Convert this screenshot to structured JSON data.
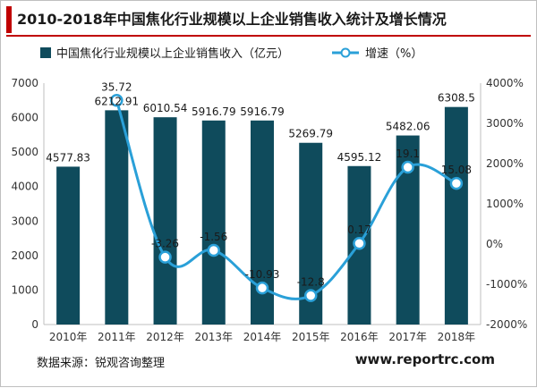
{
  "title": "2010-2018年中国焦化行业规模以上企业销售收入统计及增长情况",
  "source": "数据来源：锐观咨询整理",
  "website": "www.reportrc.com",
  "colors": {
    "bar": "#0f4b5c",
    "line": "#2aa0d8",
    "accent": "#c00000"
  },
  "chart_data": {
    "type": "bar+line",
    "categories": [
      "2010年",
      "2011年",
      "2012年",
      "2013年",
      "2014年",
      "2015年",
      "2016年",
      "2017年",
      "2018年"
    ],
    "series": [
      {
        "name": "中国焦化行业规模以上企业销售收入（亿元）",
        "type": "bar",
        "axis": "left",
        "values": [
          4577.83,
          6212.91,
          6010.54,
          5916.79,
          5916.79,
          5269.79,
          4595.12,
          5482.06,
          6308.5
        ],
        "labels": [
          "4577.83",
          "6212.91",
          "6010.54",
          "5916.79",
          "5916.79",
          "5269.79",
          "4595.12",
          "5482.06",
          "6308.5"
        ]
      },
      {
        "name": "增速（%）",
        "type": "line",
        "axis": "right",
        "values": [
          null,
          35.72,
          -3.26,
          -1.56,
          -10.93,
          -12.8,
          0.17,
          19.1,
          15.08
        ],
        "labels": [
          "",
          "35.72",
          "-3.26",
          "-1.56",
          "-10.93",
          "-12.8",
          "0.17",
          "19.1",
          "15.08"
        ]
      }
    ],
    "y_left": {
      "min": 0,
      "max": 7000,
      "ticks": [
        "0",
        "1000",
        "2000",
        "3000",
        "4000",
        "5000",
        "6000",
        "7000"
      ]
    },
    "y_right": {
      "min": -20,
      "max": 40,
      "ticks": [
        "-2000%",
        "-1000%",
        "0%",
        "1000%",
        "2000%",
        "3000%",
        "4000%"
      ]
    },
    "legend": "top",
    "grid": false
  }
}
